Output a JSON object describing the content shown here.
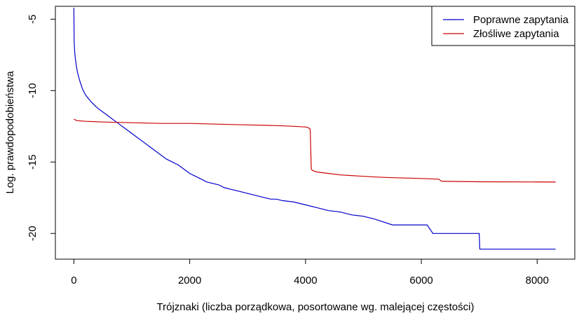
{
  "chart_data": {
    "type": "line",
    "title": "",
    "xlabel": "Trójznaki (liczba porządkowa, posortowane wg. malejącej częstości)",
    "ylabel": "Log. prawdopodobieństwa",
    "xlim": [
      -320,
      8650
    ],
    "ylim": [
      -21.8,
      -4.1
    ],
    "xticks": [
      0,
      2000,
      4000,
      6000,
      8000
    ],
    "xtick_labels": [
      "0",
      "2000",
      "4000",
      "6000",
      "8000"
    ],
    "yticks": [
      -5,
      -10,
      -15,
      -20
    ],
    "ytick_labels": [
      "-5",
      "-10",
      "-15",
      "-20"
    ],
    "grid": false,
    "legend_position": "top-right",
    "series": [
      {
        "name": "Poprawne zapytania",
        "color": "#0000cc",
        "x": [
          0,
          2,
          5,
          10,
          20,
          40,
          60,
          100,
          150,
          200,
          300,
          400,
          500,
          600,
          700,
          800,
          900,
          1000,
          1100,
          1200,
          1300,
          1400,
          1500,
          1600,
          1700,
          1800,
          1900,
          2000,
          2100,
          2200,
          2300,
          2400,
          2500,
          2600,
          2700,
          2800,
          2900,
          3000,
          3100,
          3200,
          3300,
          3400,
          3500,
          3600,
          3800,
          4000,
          4200,
          4400,
          4600,
          4800,
          5000,
          5200,
          5500,
          5800,
          6100,
          6200,
          6600,
          7000,
          7010,
          7500,
          8320
        ],
        "y": [
          -4.2,
          -5.5,
          -6.5,
          -7.1,
          -7.6,
          -8.2,
          -8.7,
          -9.3,
          -9.9,
          -10.3,
          -10.8,
          -11.2,
          -11.5,
          -11.8,
          -12.1,
          -12.4,
          -12.7,
          -13.0,
          -13.3,
          -13.6,
          -13.9,
          -14.2,
          -14.5,
          -14.8,
          -15.0,
          -15.2,
          -15.5,
          -15.8,
          -16.0,
          -16.2,
          -16.4,
          -16.5,
          -16.6,
          -16.8,
          -16.9,
          -17.0,
          -17.1,
          -17.2,
          -17.3,
          -17.4,
          -17.5,
          -17.6,
          -17.6,
          -17.7,
          -17.8,
          -18.0,
          -18.2,
          -18.4,
          -18.5,
          -18.7,
          -18.8,
          -19.0,
          -19.4,
          -19.4,
          -19.4,
          -20.0,
          -20.0,
          -20.0,
          -21.1,
          -21.1,
          -21.1
        ]
      },
      {
        "name": "Złośliwe zapytania",
        "color": "#cc0000",
        "x": [
          0,
          50,
          200,
          500,
          1000,
          1500,
          2000,
          2500,
          3000,
          3500,
          3800,
          4000,
          4050,
          4080,
          4100,
          4120,
          4200,
          4400,
          4600,
          5000,
          5200,
          5500,
          6000,
          6300,
          6350,
          7000,
          8320
        ],
        "y": [
          -12.0,
          -12.1,
          -12.15,
          -12.2,
          -12.25,
          -12.3,
          -12.3,
          -12.35,
          -12.4,
          -12.45,
          -12.5,
          -12.55,
          -12.6,
          -12.7,
          -15.5,
          -15.6,
          -15.7,
          -15.8,
          -15.9,
          -16.0,
          -16.05,
          -16.1,
          -16.15,
          -16.2,
          -16.35,
          -16.38,
          -16.4
        ]
      }
    ]
  }
}
